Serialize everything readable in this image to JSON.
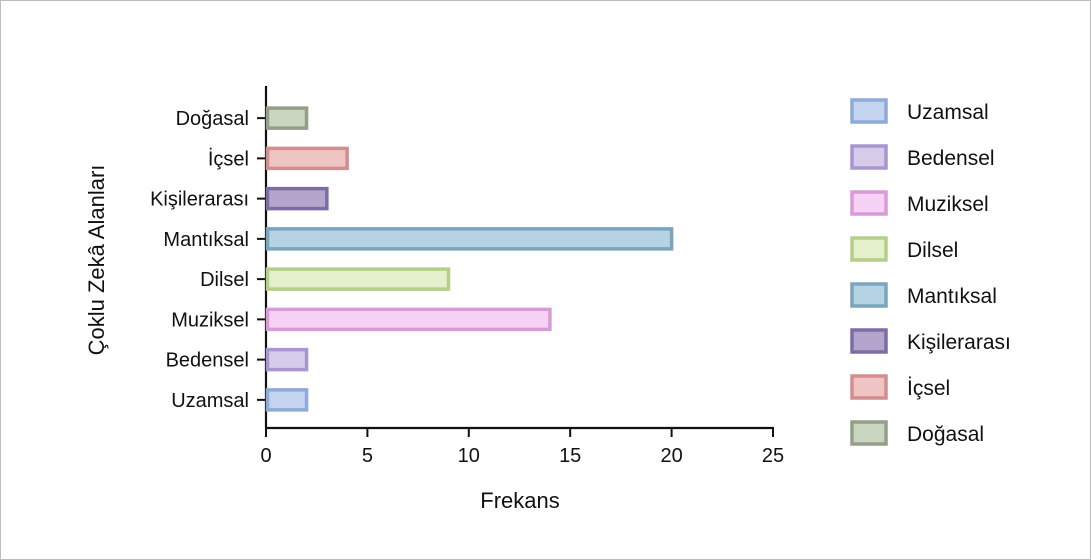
{
  "chart_data": {
    "type": "bar",
    "orientation": "horizontal",
    "title": "",
    "xlabel": "Frekans",
    "ylabel": "Çoklu Zekâ Alanları",
    "xlim": [
      0,
      25
    ],
    "xticks": [
      "0",
      "5",
      "10",
      "15",
      "20",
      "25"
    ],
    "grid": false,
    "legend_position": "right",
    "categories": [
      "Uzamsal",
      "Bedensel",
      "Muziksel",
      "Dilsel",
      "Mantıksal",
      "Kişilerarası",
      "İçsel",
      "Doğasal"
    ],
    "values": [
      2,
      2,
      14,
      9,
      20,
      3,
      4,
      2
    ],
    "colors": [
      {
        "fill": "#c5d4ee",
        "stroke": "#8fa9d8"
      },
      {
        "fill": "#d6cbe9",
        "stroke": "#a896cf"
      },
      {
        "fill": "#f6d3f6",
        "stroke": "#d99ad8"
      },
      {
        "fill": "#e4f0cc",
        "stroke": "#b3cf8a"
      },
      {
        "fill": "#b6d3e3",
        "stroke": "#7ba5bd"
      },
      {
        "fill": "#b3a5cb",
        "stroke": "#7e6ca4"
      },
      {
        "fill": "#efc4c5",
        "stroke": "#d28d8f"
      },
      {
        "fill": "#cbd6c0",
        "stroke": "#949e89"
      }
    ],
    "legend": [
      "Uzamsal",
      "Bedensel",
      "Muziksel",
      "Dilsel",
      "Mantıksal",
      "Kişilerarası",
      "İçsel",
      "Doğasal"
    ]
  }
}
